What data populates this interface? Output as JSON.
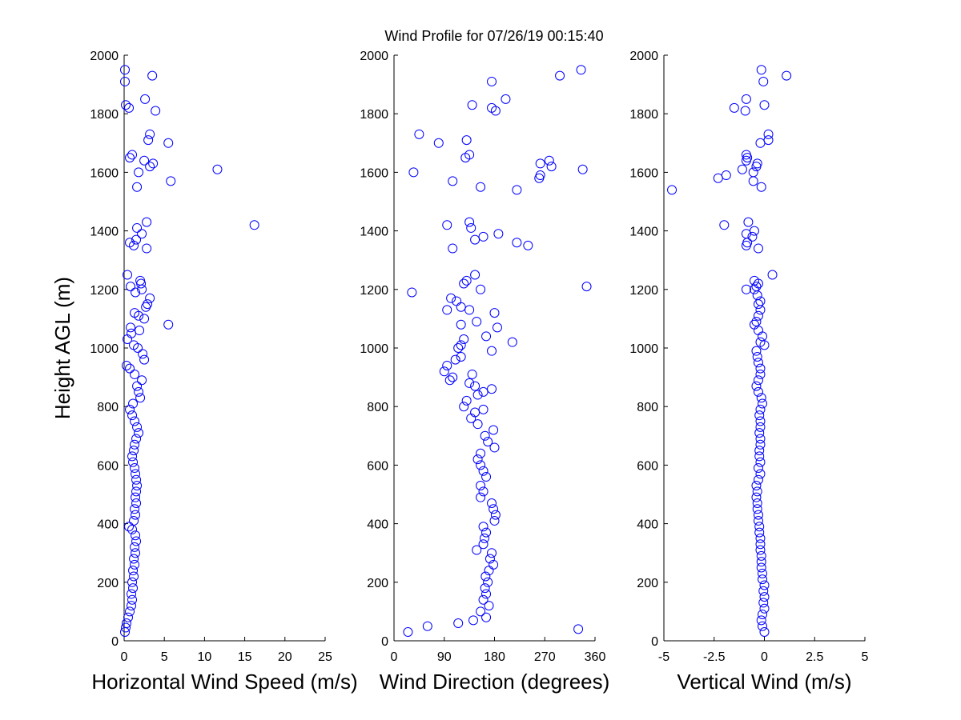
{
  "title": "Wind Profile for  07/26/19 00:15:40",
  "colors": {
    "marker": "#0000ff",
    "axis": "#000000",
    "background": "#ffffff"
  },
  "chart_data": [
    {
      "type": "scatter",
      "xlabel": "Horizontal Wind Speed (m/s)",
      "ylabel": "Height AGL (m)",
      "xlim": [
        0,
        25
      ],
      "ylim": [
        0,
        2000
      ],
      "xticks": [
        0,
        5,
        10,
        15,
        20,
        25
      ],
      "xtick_labels": [
        "0",
        "5",
        "10",
        "15",
        "20",
        "25"
      ],
      "yticks": [
        0,
        200,
        400,
        600,
        800,
        1000,
        1200,
        1400,
        1600,
        1800,
        2000
      ],
      "ytick_labels": [
        "0",
        "200",
        "400",
        "600",
        "800",
        "1000",
        "1200",
        "1400",
        "1600",
        "1800",
        "2000"
      ],
      "grid": false,
      "points": [
        [
          0.1,
          30
        ],
        [
          0.2,
          45
        ],
        [
          0.3,
          60
        ],
        [
          0.5,
          80
        ],
        [
          0.7,
          100
        ],
        [
          0.9,
          120
        ],
        [
          1.0,
          140
        ],
        [
          0.9,
          160
        ],
        [
          1.1,
          180
        ],
        [
          1.0,
          200
        ],
        [
          1.2,
          220
        ],
        [
          1.1,
          240
        ],
        [
          1.3,
          260
        ],
        [
          1.2,
          280
        ],
        [
          1.4,
          300
        ],
        [
          1.3,
          320
        ],
        [
          1.5,
          340
        ],
        [
          1.4,
          360
        ],
        [
          1.0,
          380
        ],
        [
          0.6,
          390
        ],
        [
          1.2,
          410
        ],
        [
          1.4,
          430
        ],
        [
          1.3,
          450
        ],
        [
          1.5,
          470
        ],
        [
          1.4,
          490
        ],
        [
          1.5,
          510
        ],
        [
          1.6,
          530
        ],
        [
          1.5,
          550
        ],
        [
          1.4,
          570
        ],
        [
          1.3,
          590
        ],
        [
          1.1,
          610
        ],
        [
          1.0,
          630
        ],
        [
          1.2,
          650
        ],
        [
          1.3,
          670
        ],
        [
          1.5,
          690
        ],
        [
          1.8,
          710
        ],
        [
          1.6,
          730
        ],
        [
          1.3,
          750
        ],
        [
          1.0,
          770
        ],
        [
          0.7,
          790
        ],
        [
          1.1,
          810
        ],
        [
          2.0,
          830
        ],
        [
          1.8,
          850
        ],
        [
          1.6,
          870
        ],
        [
          2.2,
          890
        ],
        [
          1.3,
          910
        ],
        [
          0.7,
          930
        ],
        [
          0.3,
          940
        ],
        [
          2.5,
          960
        ],
        [
          2.3,
          980
        ],
        [
          1.7,
          1000
        ],
        [
          1.2,
          1010
        ],
        [
          0.4,
          1030
        ],
        [
          0.9,
          1050
        ],
        [
          1.9,
          1060
        ],
        [
          0.8,
          1070
        ],
        [
          5.5,
          1080
        ],
        [
          2.5,
          1100
        ],
        [
          1.8,
          1110
        ],
        [
          1.3,
          1120
        ],
        [
          2.7,
          1140
        ],
        [
          2.9,
          1150
        ],
        [
          3.2,
          1170
        ],
        [
          1.4,
          1190
        ],
        [
          2.2,
          1200
        ],
        [
          0.8,
          1210
        ],
        [
          2.1,
          1220
        ],
        [
          2.0,
          1230
        ],
        [
          0.4,
          1250
        ],
        [
          2.8,
          1340
        ],
        [
          1.2,
          1350
        ],
        [
          0.7,
          1360
        ],
        [
          1.5,
          1370
        ],
        [
          2.2,
          1390
        ],
        [
          1.6,
          1410
        ],
        [
          16.2,
          1420
        ],
        [
          2.8,
          1430
        ],
        [
          1.6,
          1550
        ],
        [
          5.8,
          1570
        ],
        [
          1.8,
          1600
        ],
        [
          11.6,
          1610
        ],
        [
          3.2,
          1620
        ],
        [
          3.6,
          1630
        ],
        [
          2.5,
          1640
        ],
        [
          0.7,
          1650
        ],
        [
          1.0,
          1660
        ],
        [
          5.5,
          1700
        ],
        [
          3.0,
          1710
        ],
        [
          3.2,
          1730
        ],
        [
          0.6,
          1820
        ],
        [
          0.2,
          1830
        ],
        [
          3.9,
          1810
        ],
        [
          2.6,
          1850
        ],
        [
          0.1,
          1910
        ],
        [
          3.5,
          1930
        ],
        [
          0.1,
          1950
        ]
      ]
    },
    {
      "type": "scatter",
      "xlabel": "Wind Direction (degrees)",
      "ylabel": "",
      "xlim": [
        0,
        360
      ],
      "ylim": [
        0,
        2000
      ],
      "xticks": [
        0,
        90,
        180,
        270,
        360
      ],
      "xtick_labels": [
        "0",
        "90",
        "180",
        "270",
        "360"
      ],
      "yticks": [
        0,
        200,
        400,
        600,
        800,
        1000,
        1200,
        1400,
        1600,
        1800,
        2000
      ],
      "ytick_labels": [
        "0",
        "200",
        "400",
        "600",
        "800",
        "1000",
        "1200",
        "1400",
        "1600",
        "1800",
        "2000"
      ],
      "grid": false,
      "points": [
        [
          25,
          30
        ],
        [
          330,
          40
        ],
        [
          60,
          50
        ],
        [
          115,
          60
        ],
        [
          142,
          70
        ],
        [
          165,
          80
        ],
        [
          155,
          100
        ],
        [
          170,
          120
        ],
        [
          160,
          140
        ],
        [
          165,
          160
        ],
        [
          163,
          180
        ],
        [
          168,
          200
        ],
        [
          164,
          220
        ],
        [
          170,
          240
        ],
        [
          178,
          260
        ],
        [
          172,
          280
        ],
        [
          175,
          300
        ],
        [
          148,
          310
        ],
        [
          160,
          330
        ],
        [
          162,
          350
        ],
        [
          165,
          370
        ],
        [
          160,
          390
        ],
        [
          180,
          410
        ],
        [
          182,
          430
        ],
        [
          178,
          450
        ],
        [
          175,
          470
        ],
        [
          155,
          490
        ],
        [
          160,
          510
        ],
        [
          155,
          530
        ],
        [
          165,
          560
        ],
        [
          160,
          580
        ],
        [
          155,
          600
        ],
        [
          150,
          620
        ],
        [
          155,
          640
        ],
        [
          180,
          660
        ],
        [
          168,
          680
        ],
        [
          163,
          700
        ],
        [
          178,
          720
        ],
        [
          150,
          740
        ],
        [
          138,
          760
        ],
        [
          145,
          780
        ],
        [
          160,
          790
        ],
        [
          125,
          800
        ],
        [
          130,
          820
        ],
        [
          150,
          840
        ],
        [
          160,
          850
        ],
        [
          175,
          860
        ],
        [
          145,
          870
        ],
        [
          135,
          880
        ],
        [
          140,
          910
        ],
        [
          90,
          920
        ],
        [
          95,
          940
        ],
        [
          105,
          900
        ],
        [
          100,
          890
        ],
        [
          110,
          960
        ],
        [
          120,
          970
        ],
        [
          115,
          1000
        ],
        [
          175,
          990
        ],
        [
          120,
          1010
        ],
        [
          212,
          1020
        ],
        [
          125,
          1030
        ],
        [
          165,
          1040
        ],
        [
          185,
          1070
        ],
        [
          120,
          1080
        ],
        [
          148,
          1090
        ],
        [
          180,
          1120
        ],
        [
          135,
          1130
        ],
        [
          95,
          1130
        ],
        [
          120,
          1140
        ],
        [
          112,
          1160
        ],
        [
          102,
          1170
        ],
        [
          155,
          1200
        ],
        [
          345,
          1210
        ],
        [
          32,
          1190
        ],
        [
          125,
          1220
        ],
        [
          130,
          1230
        ],
        [
          145,
          1250
        ],
        [
          105,
          1340
        ],
        [
          240,
          1350
        ],
        [
          220,
          1360
        ],
        [
          145,
          1370
        ],
        [
          160,
          1380
        ],
        [
          187,
          1390
        ],
        [
          138,
          1410
        ],
        [
          135,
          1430
        ],
        [
          95,
          1420
        ],
        [
          220,
          1540
        ],
        [
          155,
          1550
        ],
        [
          105,
          1570
        ],
        [
          260,
          1580
        ],
        [
          262,
          1590
        ],
        [
          35,
          1600
        ],
        [
          338,
          1610
        ],
        [
          282,
          1620
        ],
        [
          262,
          1630
        ],
        [
          278,
          1640
        ],
        [
          128,
          1650
        ],
        [
          135,
          1660
        ],
        [
          80,
          1700
        ],
        [
          130,
          1710
        ],
        [
          45,
          1730
        ],
        [
          182,
          1810
        ],
        [
          175,
          1820
        ],
        [
          140,
          1830
        ],
        [
          200,
          1850
        ],
        [
          175,
          1910
        ],
        [
          297,
          1930
        ],
        [
          335,
          1950
        ]
      ]
    },
    {
      "type": "scatter",
      "xlabel": "Vertical Wind (m/s)",
      "ylabel": "",
      "xlim": [
        -5,
        5
      ],
      "ylim": [
        0,
        2000
      ],
      "xticks": [
        -5,
        -2.5,
        0,
        2.5,
        5
      ],
      "xtick_labels": [
        "-5",
        "-2.5",
        "0",
        "2.5",
        "5"
      ],
      "yticks": [
        0,
        200,
        400,
        600,
        800,
        1000,
        1200,
        1400,
        1600,
        1800,
        2000
      ],
      "ytick_labels": [
        "0",
        "200",
        "400",
        "600",
        "800",
        "1000",
        "1200",
        "1400",
        "1600",
        "1800",
        "2000"
      ],
      "grid": false,
      "points": [
        [
          0.0,
          30
        ],
        [
          -0.1,
          50
        ],
        [
          -0.15,
          70
        ],
        [
          -0.1,
          90
        ],
        [
          0.0,
          110
        ],
        [
          -0.05,
          130
        ],
        [
          0.0,
          150
        ],
        [
          -0.05,
          170
        ],
        [
          0.0,
          190
        ],
        [
          -0.1,
          210
        ],
        [
          -0.1,
          230
        ],
        [
          -0.15,
          250
        ],
        [
          -0.15,
          270
        ],
        [
          -0.15,
          290
        ],
        [
          -0.2,
          310
        ],
        [
          -0.2,
          330
        ],
        [
          -0.2,
          350
        ],
        [
          -0.25,
          370
        ],
        [
          -0.25,
          390
        ],
        [
          -0.3,
          410
        ],
        [
          -0.3,
          430
        ],
        [
          -0.35,
          450
        ],
        [
          -0.35,
          470
        ],
        [
          -0.4,
          490
        ],
        [
          -0.35,
          510
        ],
        [
          -0.4,
          530
        ],
        [
          -0.3,
          550
        ],
        [
          -0.2,
          570
        ],
        [
          -0.3,
          590
        ],
        [
          -0.2,
          610
        ],
        [
          -0.25,
          630
        ],
        [
          -0.25,
          650
        ],
        [
          -0.2,
          670
        ],
        [
          -0.2,
          690
        ],
        [
          -0.25,
          710
        ],
        [
          -0.2,
          730
        ],
        [
          -0.2,
          750
        ],
        [
          -0.25,
          770
        ],
        [
          -0.2,
          790
        ],
        [
          -0.1,
          810
        ],
        [
          -0.15,
          830
        ],
        [
          -0.3,
          850
        ],
        [
          -0.4,
          870
        ],
        [
          -0.3,
          890
        ],
        [
          -0.2,
          910
        ],
        [
          -0.2,
          930
        ],
        [
          -0.3,
          950
        ],
        [
          -0.35,
          970
        ],
        [
          -0.4,
          990
        ],
        [
          0.0,
          1010
        ],
        [
          -0.2,
          1020
        ],
        [
          -0.1,
          1040
        ],
        [
          -0.3,
          1060
        ],
        [
          -0.5,
          1080
        ],
        [
          -0.4,
          1090
        ],
        [
          -0.3,
          1110
        ],
        [
          -0.2,
          1130
        ],
        [
          -0.3,
          1150
        ],
        [
          -0.2,
          1160
        ],
        [
          -0.35,
          1180
        ],
        [
          -0.5,
          1200
        ],
        [
          -0.9,
          1200
        ],
        [
          -0.4,
          1210
        ],
        [
          -0.3,
          1220
        ],
        [
          -0.5,
          1230
        ],
        [
          0.4,
          1250
        ],
        [
          -0.3,
          1340
        ],
        [
          -0.9,
          1350
        ],
        [
          -0.85,
          1360
        ],
        [
          -0.6,
          1380
        ],
        [
          -0.9,
          1390
        ],
        [
          -0.5,
          1400
        ],
        [
          -0.8,
          1430
        ],
        [
          -2.0,
          1420
        ],
        [
          -4.6,
          1540
        ],
        [
          -0.15,
          1550
        ],
        [
          -0.55,
          1570
        ],
        [
          -2.3,
          1580
        ],
        [
          -1.9,
          1590
        ],
        [
          -0.55,
          1600
        ],
        [
          -1.1,
          1610
        ],
        [
          -0.4,
          1620
        ],
        [
          -0.35,
          1630
        ],
        [
          -0.9,
          1640
        ],
        [
          -0.85,
          1650
        ],
        [
          -0.9,
          1660
        ],
        [
          -0.2,
          1700
        ],
        [
          0.2,
          1710
        ],
        [
          0.2,
          1730
        ],
        [
          -1.5,
          1820
        ],
        [
          -0.95,
          1810
        ],
        [
          0.0,
          1830
        ],
        [
          -0.9,
          1850
        ],
        [
          -0.05,
          1910
        ],
        [
          1.1,
          1930
        ],
        [
          -0.15,
          1950
        ]
      ]
    }
  ]
}
